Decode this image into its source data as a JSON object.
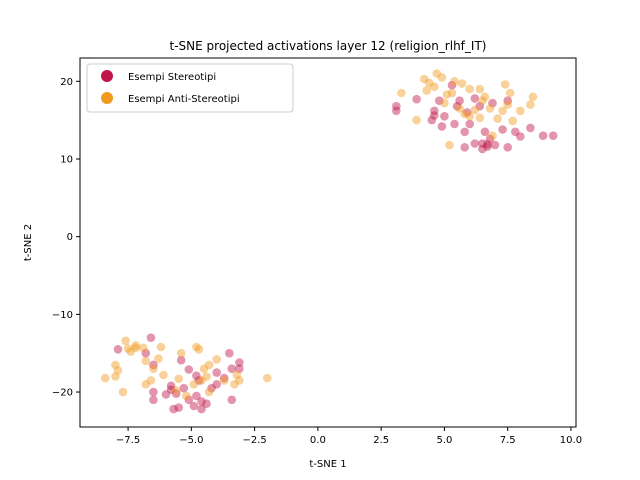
{
  "chart_data": {
    "type": "scatter",
    "title": "t-SNE projected activations layer 12 (religion_rlhf_IT)",
    "xlabel": "t-SNE 1",
    "ylabel": "t-SNE 2",
    "xlim": [
      -9.4,
      10.2
    ],
    "ylim": [
      -24.5,
      23
    ],
    "xticks": [
      -7.5,
      -5.0,
      -2.5,
      0.0,
      2.5,
      5.0,
      7.5,
      10.0
    ],
    "xtick_labels": [
      "−7.5",
      "−5.0",
      "−2.5",
      "0.0",
      "2.5",
      "5.0",
      "7.5",
      "10.0"
    ],
    "yticks": [
      -20,
      -10,
      0,
      10,
      20
    ],
    "ytick_labels": [
      "−20",
      "−10",
      "0",
      "10",
      "20"
    ],
    "grid": false,
    "legend_position": "top-left",
    "series": [
      {
        "name": "Esempi Stereotipi",
        "color": "#c0154a",
        "points": [
          [
            3.1,
            16.8
          ],
          [
            3.1,
            16.2
          ],
          [
            3.9,
            17.7
          ],
          [
            4.5,
            15.0
          ],
          [
            4.6,
            16.2
          ],
          [
            4.6,
            15.6
          ],
          [
            4.8,
            17.5
          ],
          [
            4.9,
            14.2
          ],
          [
            5.0,
            15.5
          ],
          [
            5.4,
            14.5
          ],
          [
            5.5,
            16.8
          ],
          [
            5.6,
            17.5
          ],
          [
            5.8,
            13.5
          ],
          [
            5.8,
            11.5
          ],
          [
            5.9,
            16.0
          ],
          [
            6.0,
            14.5
          ],
          [
            6.2,
            17.8
          ],
          [
            6.2,
            12.0
          ],
          [
            6.4,
            16.8
          ],
          [
            6.5,
            12.0
          ],
          [
            6.5,
            11.3
          ],
          [
            6.6,
            13.5
          ],
          [
            6.7,
            11.6
          ],
          [
            6.7,
            11.9
          ],
          [
            6.8,
            12.6
          ],
          [
            6.9,
            17.2
          ],
          [
            7.0,
            11.8
          ],
          [
            7.3,
            13.8
          ],
          [
            7.5,
            11.5
          ],
          [
            7.5,
            17.5
          ],
          [
            7.8,
            13.5
          ],
          [
            8.0,
            12.9
          ],
          [
            8.4,
            14.0
          ],
          [
            8.9,
            13.0
          ],
          [
            9.3,
            13.0
          ],
          [
            5.3,
            19.5
          ],
          [
            -7.9,
            -14.5
          ],
          [
            -6.8,
            -15.0
          ],
          [
            -6.6,
            -13.0
          ],
          [
            -6.5,
            -16.5
          ],
          [
            -6.5,
            -21.0
          ],
          [
            -6.5,
            -20.0
          ],
          [
            -6.0,
            -20.3
          ],
          [
            -5.8,
            -19.2
          ],
          [
            -5.8,
            -19.7
          ],
          [
            -5.7,
            -22.2
          ],
          [
            -5.6,
            -20.2
          ],
          [
            -5.5,
            -22.0
          ],
          [
            -5.4,
            -15.9
          ],
          [
            -5.3,
            -19.5
          ],
          [
            -5.1,
            -17.1
          ],
          [
            -5.1,
            -21.0
          ],
          [
            -4.9,
            -21.8
          ],
          [
            -4.8,
            -20.5
          ],
          [
            -4.8,
            -17.9
          ],
          [
            -4.7,
            -18.5
          ],
          [
            -4.6,
            -22.2
          ],
          [
            -4.6,
            -21.2
          ],
          [
            -4.4,
            -21.5
          ],
          [
            -4.2,
            -19.5
          ],
          [
            -4.0,
            -19.0
          ],
          [
            -4.0,
            -17.5
          ],
          [
            -3.7,
            -18.2
          ],
          [
            -3.5,
            -15.0
          ],
          [
            -3.4,
            -17.0
          ],
          [
            -3.4,
            -21.0
          ],
          [
            -3.1,
            -17.0
          ],
          [
            -3.1,
            -16.2
          ]
        ]
      },
      {
        "name": "Esempi Anti-Stereotipi",
        "color": "#f29a1e",
        "points": [
          [
            3.3,
            18.5
          ],
          [
            3.9,
            15.0
          ],
          [
            4.2,
            20.3
          ],
          [
            4.3,
            18.8
          ],
          [
            4.4,
            19.8
          ],
          [
            4.6,
            19.3
          ],
          [
            4.7,
            21.0
          ],
          [
            4.9,
            20.5
          ],
          [
            5.1,
            18.3
          ],
          [
            5.2,
            11.8
          ],
          [
            5.3,
            18.5
          ],
          [
            5.4,
            20.0
          ],
          [
            5.6,
            16.5
          ],
          [
            5.7,
            19.7
          ],
          [
            5.8,
            15.8
          ],
          [
            6.0,
            19.0
          ],
          [
            6.0,
            15.5
          ],
          [
            6.2,
            16.3
          ],
          [
            6.4,
            15.3
          ],
          [
            6.4,
            19.0
          ],
          [
            6.6,
            18.0
          ],
          [
            6.8,
            16.5
          ],
          [
            6.9,
            13.0
          ],
          [
            7.1,
            15.2
          ],
          [
            7.3,
            16.2
          ],
          [
            7.4,
            19.6
          ],
          [
            7.5,
            17.0
          ],
          [
            7.6,
            18.5
          ],
          [
            7.7,
            14.9
          ],
          [
            8.0,
            16.2
          ],
          [
            8.4,
            17.0
          ],
          [
            8.5,
            18.0
          ],
          [
            5.0,
            17.2
          ],
          [
            6.5,
            17.5
          ],
          [
            -8.4,
            -18.2
          ],
          [
            -8.0,
            -16.5
          ],
          [
            -7.9,
            -17.2
          ],
          [
            -8.0,
            -18.0
          ],
          [
            -7.7,
            -20.0
          ],
          [
            -7.6,
            -13.4
          ],
          [
            -7.5,
            -14.4
          ],
          [
            -7.4,
            -14.8
          ],
          [
            -7.2,
            -14.0
          ],
          [
            -7.2,
            -14.3
          ],
          [
            -6.9,
            -14.3
          ],
          [
            -6.8,
            -16.0
          ],
          [
            -6.8,
            -19.0
          ],
          [
            -6.6,
            -18.5
          ],
          [
            -6.5,
            -17.0
          ],
          [
            -6.3,
            -15.7
          ],
          [
            -6.2,
            -14.2
          ],
          [
            -6.1,
            -17.8
          ],
          [
            -5.6,
            -19.8
          ],
          [
            -5.5,
            -18.3
          ],
          [
            -5.4,
            -15.0
          ],
          [
            -5.2,
            -20.5
          ],
          [
            -4.9,
            -19.0
          ],
          [
            -4.8,
            -14.2
          ],
          [
            -4.7,
            -14.5
          ],
          [
            -4.6,
            -18.5
          ],
          [
            -4.5,
            -17.0
          ],
          [
            -4.4,
            -18.0
          ],
          [
            -4.3,
            -16.5
          ],
          [
            -4.0,
            -15.8
          ],
          [
            -3.7,
            -18.5
          ],
          [
            -3.3,
            -19.0
          ],
          [
            -3.2,
            -17.8
          ],
          [
            -3.1,
            -18.5
          ],
          [
            -2.0,
            -18.2
          ],
          [
            -4.3,
            -20.0
          ]
        ]
      }
    ]
  }
}
